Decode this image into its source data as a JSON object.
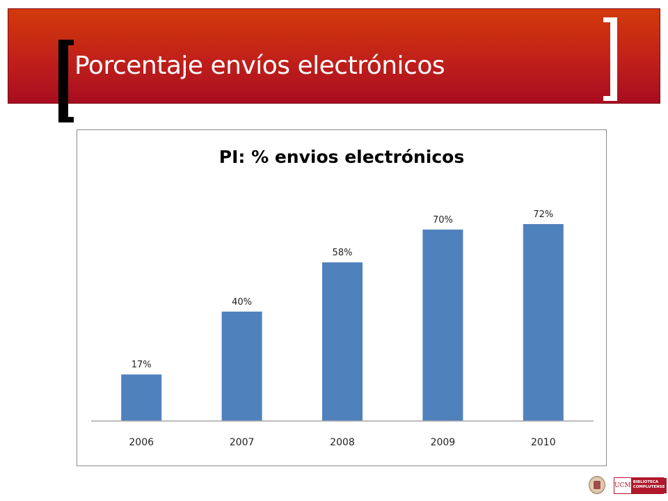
{
  "slide": {
    "title": "Porcentaje envíos electrónicos"
  },
  "colors": {
    "banner_top": "#d23a0b",
    "banner_bottom": "#a70d20",
    "bar": "#4f81bd",
    "axis": "#a6a6a6"
  },
  "chart_data": {
    "type": "bar",
    "title": "PI: % envios electrónicos",
    "categories": [
      "2006",
      "2007",
      "2008",
      "2009",
      "2010"
    ],
    "values": [
      17,
      40,
      58,
      70,
      72
    ],
    "data_labels": [
      "17%",
      "40%",
      "58%",
      "70%",
      "72%"
    ],
    "xlabel": "",
    "ylabel": "",
    "ylim": [
      0,
      80
    ],
    "grid": false,
    "legend": "none"
  },
  "footer": {
    "logo_mark": "UCM",
    "logo_text": [
      "BIBLIOTECA",
      "COMPLUTENSE"
    ]
  }
}
